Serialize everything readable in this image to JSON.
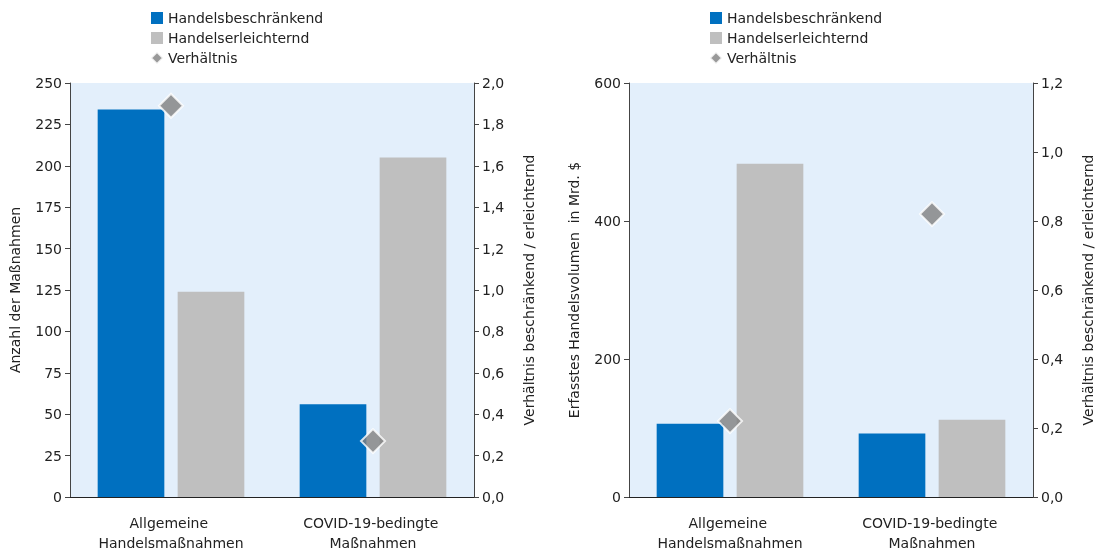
{
  "chart_data": [
    {
      "type": "bar",
      "categories": [
        "Allgemeine Handelsmaßnahmen",
        "COVID-19-bedingte Maßnahmen"
      ],
      "ylabel": "Anzahl der Maßnahmen",
      "y2label": "Verhältnis beschränkend / erleichternd",
      "series": [
        {
          "name": "Handelsbeschränkend",
          "color": "#0070c0",
          "values": [
            234,
            56
          ]
        },
        {
          "name": "Handelserleichternd",
          "color": "#bfbfbf",
          "values": [
            124,
            205
          ]
        },
        {
          "name": "Verhältnis",
          "type": "scatter",
          "axis": "y2",
          "marker": "diamond",
          "color": "#808080",
          "x": [
            "Allgemeine Handelsmaßnahmen",
            "COVID-19-bedingte Maßnahmen"
          ],
          "values": [
            1.89,
            0.27
          ]
        }
      ],
      "ylim": [
        0,
        250
      ],
      "yticks": [
        0,
        25,
        50,
        75,
        100,
        125,
        150,
        175,
        200,
        225,
        250
      ],
      "y2lim": [
        0,
        2
      ],
      "y2ticks": [
        {
          "value": 0,
          "label": "0,0"
        },
        {
          "value": 0.2,
          "label": "0,2"
        },
        {
          "value": 0.4,
          "label": "0,4"
        },
        {
          "value": 0.6,
          "label": "0,6"
        },
        {
          "value": 0.8,
          "label": "0,8"
        },
        {
          "value": 1,
          "label": "1,0"
        },
        {
          "value": 1.2,
          "label": "1,2"
        },
        {
          "value": 1.4,
          "label": "1,4"
        },
        {
          "value": 1.6,
          "label": "1,6"
        },
        {
          "value": 1.8,
          "label": "1,8"
        },
        {
          "value": 2,
          "label": "2,0"
        }
      ],
      "grid": false,
      "legend": "top"
    },
    {
      "type": "bar",
      "categories": [
        "Allgemeine Handelsmaßnahmen",
        "COVID-19-bedingte Maßnahmen"
      ],
      "ylabel": "Erfasstes Handelsvolumen  in Mrd. $",
      "y2label": "Verhältnis beschränkend / erleichternd",
      "series": [
        {
          "name": "Handelsbeschränkend",
          "color": "#0070c0",
          "values": [
            106,
            92
          ]
        },
        {
          "name": "Handelserleichternd",
          "color": "#bfbfbf",
          "values": [
            483,
            112
          ]
        },
        {
          "name": "Verhältnis",
          "type": "scatter",
          "axis": "y2",
          "marker": "diamond",
          "color": "#808080",
          "x": [
            "Allgemeine Handelsmaßnahmen",
            "COVID-19-bedingte Maßnahmen"
          ],
          "values": [
            0.22,
            0.82
          ]
        }
      ],
      "ylim": [
        0,
        600
      ],
      "yticks": [
        0,
        200,
        400,
        600
      ],
      "y2lim": [
        0,
        1.2
      ],
      "y2ticks": [
        {
          "value": 0,
          "label": "0,0"
        },
        {
          "value": 0.2,
          "label": "0,2"
        },
        {
          "value": 0.4,
          "label": "0,4"
        },
        {
          "value": 0.6,
          "label": "0,6"
        },
        {
          "value": 0.8,
          "label": "0,8"
        },
        {
          "value": 1,
          "label": "1,0"
        },
        {
          "value": 1.2,
          "label": "1,2"
        }
      ],
      "grid": false,
      "legend": "top"
    }
  ]
}
